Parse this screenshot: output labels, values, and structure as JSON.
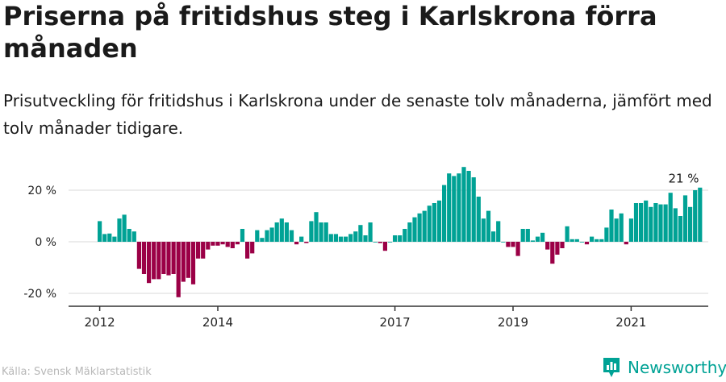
{
  "title": "Priserna på fritidshus steg i Karlskrona förra månaden",
  "subtitle": "Prisutveckling för fritidshus i Karlskrona under de senaste tolv månaderna, jämfört med tolv månader tidigare.",
  "source": "Källa: Svensk Mäklarstatistik",
  "brand": "Newsworthy",
  "colors": {
    "positive": "#00a295",
    "negative": "#9b0046",
    "grid": "#d9d9d9",
    "axis": "#333333"
  },
  "chart_data": {
    "type": "bar",
    "title": "Priserna på fritidshus steg i Karlskrona förra månaden",
    "ylim": [
      -25,
      30
    ],
    "y_ticks": [
      {
        "value": 20,
        "label": "20 %"
      },
      {
        "value": 0,
        "label": "0 %"
      },
      {
        "value": -20,
        "label": "-20 %"
      }
    ],
    "x_ticks": [
      {
        "index": 0,
        "label": "2012"
      },
      {
        "index": 24,
        "label": "2014"
      },
      {
        "index": 60,
        "label": "2017"
      },
      {
        "index": 84,
        "label": "2019"
      },
      {
        "index": 108,
        "label": "2021"
      }
    ],
    "start": "2012-01",
    "annotation": {
      "index": 119,
      "label": "21 %"
    },
    "values": [
      8,
      3,
      3.2,
      2,
      9,
      10.5,
      5,
      4,
      -10.5,
      -12.5,
      -16,
      -14.5,
      -14.5,
      -12.5,
      -13,
      -12.5,
      -21.5,
      -15.5,
      -14,
      -16.5,
      -6.5,
      -6.5,
      -3,
      -1.5,
      -1.5,
      -1,
      -2,
      -2.5,
      -1,
      5,
      -6.5,
      -4.5,
      4.5,
      1.5,
      4.5,
      5.5,
      7.5,
      9,
      7.5,
      4.5,
      -1,
      2,
      -0.5,
      8,
      11.5,
      7.5,
      7.5,
      3,
      3,
      2,
      2,
      3,
      4,
      6.5,
      2.5,
      7.5,
      0,
      -0.5,
      -3.5,
      0,
      2.5,
      2.5,
      5,
      7.5,
      9.5,
      11,
      12,
      14,
      15,
      16,
      22,
      26.5,
      25.5,
      26.5,
      29,
      27.5,
      25,
      17.5,
      9,
      12,
      4,
      8,
      0,
      -2,
      -2,
      -5.5,
      5,
      5,
      0.5,
      2,
      3.5,
      -3,
      -8.5,
      -5,
      -2.5,
      6,
      1,
      1,
      0,
      -1,
      2,
      1,
      1,
      5.5,
      12.5,
      9,
      11,
      -1,
      9,
      15,
      15,
      16,
      13.5,
      15,
      14.5,
      14.5,
      19,
      13,
      10,
      18,
      13.5,
      20,
      21
    ]
  }
}
